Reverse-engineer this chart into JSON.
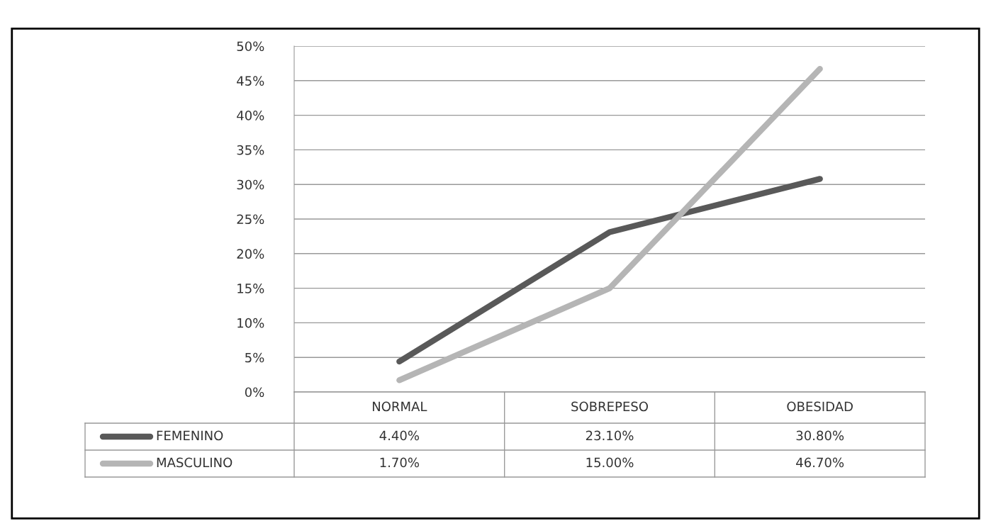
{
  "chart_data": {
    "type": "line",
    "categories": [
      "NORMAL",
      "SOBREPESO",
      "OBESIDAD"
    ],
    "series": [
      {
        "name": "FEMENINO",
        "color": "#595959",
        "values": [
          4.4,
          23.1,
          30.8
        ],
        "value_labels": [
          "4.40%",
          "23.10%",
          "30.80%"
        ]
      },
      {
        "name": "MASCULINO",
        "color": "#b5b5b5",
        "values": [
          1.7,
          15.0,
          46.7
        ],
        "value_labels": [
          "1.70%",
          "15.00%",
          "46.70%"
        ]
      }
    ],
    "ylim": [
      0,
      50
    ],
    "yticks": [
      {
        "value": 0,
        "label": "0%"
      },
      {
        "value": 5,
        "label": "5%"
      },
      {
        "value": 10,
        "label": "10%"
      },
      {
        "value": 15,
        "label": "15%"
      },
      {
        "value": 20,
        "label": "20%"
      },
      {
        "value": 25,
        "label": "25%"
      },
      {
        "value": 30,
        "label": "30%"
      },
      {
        "value": 35,
        "label": "35%"
      },
      {
        "value": 40,
        "label": "40%"
      },
      {
        "value": 45,
        "label": "45%"
      },
      {
        "value": 50,
        "label": "50%"
      }
    ],
    "grid": "y",
    "legend": "bottom left",
    "marker": "none",
    "line_style": "solid"
  }
}
